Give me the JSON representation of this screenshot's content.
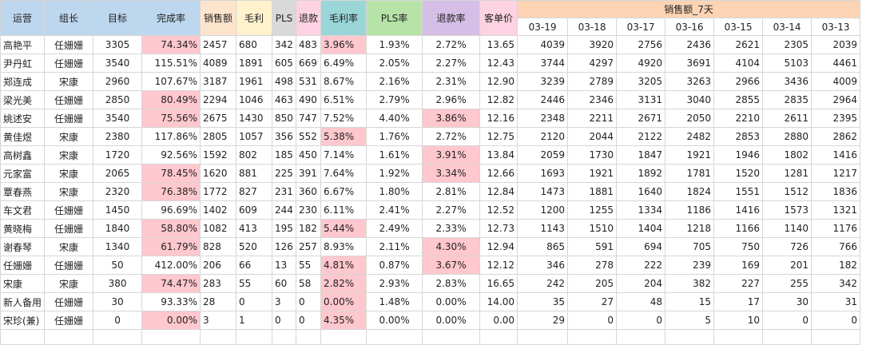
{
  "headers": {
    "ops": "运营",
    "leader": "组长",
    "target": "目标",
    "completion": "完成率",
    "sales": "销售额",
    "profit": "毛利",
    "pls": "PLS",
    "refund": "退款",
    "margin": "毛利率",
    "pls_rate": "PLS率",
    "refund_rate": "退款率",
    "avg_price": "客单价",
    "sales7": "销售额_7天"
  },
  "dates": [
    "03-19",
    "03-18",
    "03-17",
    "03-16",
    "03-15",
    "03-14",
    "03-13"
  ],
  "highlight_color": "#ffc7ce",
  "rows": [
    {
      "ops": "高艳平",
      "leader": "任姗姗",
      "target": "3305",
      "completion": "74.34%",
      "sales": "2457",
      "profit": "680",
      "pls": "342",
      "refund": "483",
      "margin": "3.96%",
      "pls_rate": "1.93%",
      "refund_rate": "2.72%",
      "avg": "13.65",
      "d": [
        "4039",
        "3920",
        "2756",
        "2436",
        "2621",
        "2305",
        "2039"
      ],
      "hl": [
        "completion",
        "margin"
      ]
    },
    {
      "ops": "尹丹虹",
      "leader": "任姗姗",
      "target": "3540",
      "completion": "115.51%",
      "sales": "4089",
      "profit": "1891",
      "pls": "605",
      "refund": "669",
      "margin": "6.49%",
      "pls_rate": "2.05%",
      "refund_rate": "2.27%",
      "avg": "12.43",
      "d": [
        "3744",
        "4297",
        "4920",
        "3691",
        "4104",
        "5103",
        "4461"
      ],
      "hl": []
    },
    {
      "ops": "郑连成",
      "leader": "宋康",
      "target": "2960",
      "completion": "107.67%",
      "sales": "3187",
      "profit": "1961",
      "pls": "498",
      "refund": "531",
      "margin": "8.67%",
      "pls_rate": "2.16%",
      "refund_rate": "2.31%",
      "avg": "12.90",
      "d": [
        "3239",
        "2789",
        "3205",
        "3263",
        "2966",
        "3436",
        "4009"
      ],
      "hl": []
    },
    {
      "ops": "梁光美",
      "leader": "任姗姗",
      "target": "2850",
      "completion": "80.49%",
      "sales": "2294",
      "profit": "1046",
      "pls": "463",
      "refund": "490",
      "margin": "6.51%",
      "pls_rate": "2.79%",
      "refund_rate": "2.96%",
      "avg": "12.82",
      "d": [
        "2446",
        "2346",
        "3131",
        "3040",
        "2855",
        "2835",
        "2964"
      ],
      "hl": [
        "completion"
      ]
    },
    {
      "ops": "姚述安",
      "leader": "任姗姗",
      "target": "3540",
      "completion": "75.56%",
      "sales": "2675",
      "profit": "1430",
      "pls": "850",
      "refund": "747",
      "margin": "7.52%",
      "pls_rate": "4.40%",
      "refund_rate": "3.86%",
      "avg": "12.16",
      "d": [
        "2348",
        "2211",
        "2671",
        "2050",
        "2210",
        "2611",
        "2395"
      ],
      "hl": [
        "completion",
        "refund_rate"
      ]
    },
    {
      "ops": "黄佳煜",
      "leader": "宋康",
      "target": "2380",
      "completion": "117.86%",
      "sales": "2805",
      "profit": "1057",
      "pls": "356",
      "refund": "552",
      "margin": "5.38%",
      "pls_rate": "1.76%",
      "refund_rate": "2.72%",
      "avg": "12.75",
      "d": [
        "2120",
        "2044",
        "2122",
        "2482",
        "2853",
        "2880",
        "2862"
      ],
      "hl": [
        "margin"
      ]
    },
    {
      "ops": "高树鑫",
      "leader": "宋康",
      "target": "1720",
      "completion": "92.56%",
      "sales": "1592",
      "profit": "802",
      "pls": "185",
      "refund": "450",
      "margin": "7.14%",
      "pls_rate": "1.61%",
      "refund_rate": "3.91%",
      "avg": "13.84",
      "d": [
        "2059",
        "1730",
        "1847",
        "1921",
        "1946",
        "1802",
        "1416"
      ],
      "hl": [
        "refund_rate"
      ]
    },
    {
      "ops": "元家富",
      "leader": "宋康",
      "target": "2065",
      "completion": "78.45%",
      "sales": "1620",
      "profit": "881",
      "pls": "225",
      "refund": "391",
      "margin": "7.64%",
      "pls_rate": "1.92%",
      "refund_rate": "3.34%",
      "avg": "12.66",
      "d": [
        "1693",
        "1921",
        "1892",
        "1781",
        "1520",
        "1281",
        "1217"
      ],
      "hl": [
        "completion",
        "refund_rate"
      ]
    },
    {
      "ops": "覃春燕",
      "leader": "宋康",
      "target": "2320",
      "completion": "76.38%",
      "sales": "1772",
      "profit": "827",
      "pls": "231",
      "refund": "360",
      "margin": "6.67%",
      "pls_rate": "1.80%",
      "refund_rate": "2.81%",
      "avg": "12.84",
      "d": [
        "1473",
        "1881",
        "1640",
        "1824",
        "1551",
        "1512",
        "1836"
      ],
      "hl": [
        "completion"
      ]
    },
    {
      "ops": "车文君",
      "leader": "任姗姗",
      "target": "1450",
      "completion": "96.69%",
      "sales": "1402",
      "profit": "609",
      "pls": "244",
      "refund": "230",
      "margin": "6.11%",
      "pls_rate": "2.41%",
      "refund_rate": "2.27%",
      "avg": "12.52",
      "d": [
        "1200",
        "1255",
        "1334",
        "1186",
        "1416",
        "1573",
        "1321"
      ],
      "hl": []
    },
    {
      "ops": "黄晓梅",
      "leader": "任姗姗",
      "target": "1840",
      "completion": "58.80%",
      "sales": "1082",
      "profit": "413",
      "pls": "195",
      "refund": "182",
      "margin": "5.44%",
      "pls_rate": "2.49%",
      "refund_rate": "2.33%",
      "avg": "12.73",
      "d": [
        "1143",
        "1510",
        "1404",
        "1218",
        "1166",
        "1140",
        "1176"
      ],
      "hl": [
        "completion",
        "margin"
      ]
    },
    {
      "ops": "谢春琴",
      "leader": "宋康",
      "target": "1340",
      "completion": "61.79%",
      "sales": "828",
      "profit": "520",
      "pls": "126",
      "refund": "257",
      "margin": "8.93%",
      "pls_rate": "2.11%",
      "refund_rate": "4.30%",
      "avg": "12.94",
      "d": [
        "865",
        "591",
        "694",
        "705",
        "750",
        "726",
        "766"
      ],
      "hl": [
        "completion",
        "refund_rate"
      ]
    },
    {
      "ops": "任姗姗",
      "leader": "任姗姗",
      "target": "50",
      "completion": "412.00%",
      "sales": "206",
      "profit": "66",
      "pls": "13",
      "refund": "55",
      "margin": "4.81%",
      "pls_rate": "0.87%",
      "refund_rate": "3.67%",
      "avg": "12.12",
      "d": [
        "346",
        "278",
        "222",
        "239",
        "169",
        "201",
        "182"
      ],
      "hl": [
        "margin",
        "refund_rate"
      ]
    },
    {
      "ops": "宋康",
      "leader": "宋康",
      "target": "380",
      "completion": "74.47%",
      "sales": "283",
      "profit": "55",
      "pls": "60",
      "refund": "58",
      "margin": "2.82%",
      "pls_rate": "2.93%",
      "refund_rate": "2.83%",
      "avg": "16.65",
      "d": [
        "242",
        "205",
        "204",
        "382",
        "227",
        "255",
        "342"
      ],
      "hl": [
        "completion",
        "margin"
      ]
    },
    {
      "ops": "新人备用",
      "leader": "任姗姗",
      "target": "30",
      "completion": "93.33%",
      "sales": "28",
      "profit": "0",
      "pls": "3",
      "refund": "0",
      "margin": "0.00%",
      "pls_rate": "1.48%",
      "refund_rate": "0.00%",
      "avg": "14.00",
      "d": [
        "35",
        "27",
        "48",
        "15",
        "17",
        "30",
        "31"
      ],
      "hl": [
        "margin"
      ]
    },
    {
      "ops": "宋珍(兼)",
      "leader": "任姗姗",
      "target": "0",
      "completion": "0.00%",
      "sales": "3",
      "profit": "1",
      "pls": "0",
      "refund": "0",
      "margin": "4.35%",
      "pls_rate": "0.00%",
      "refund_rate": "0.00%",
      "avg": "0.00",
      "d": [
        "29",
        "0",
        "0",
        "5",
        "10",
        "0",
        "0"
      ],
      "hl": [
        "completion",
        "margin"
      ]
    }
  ]
}
